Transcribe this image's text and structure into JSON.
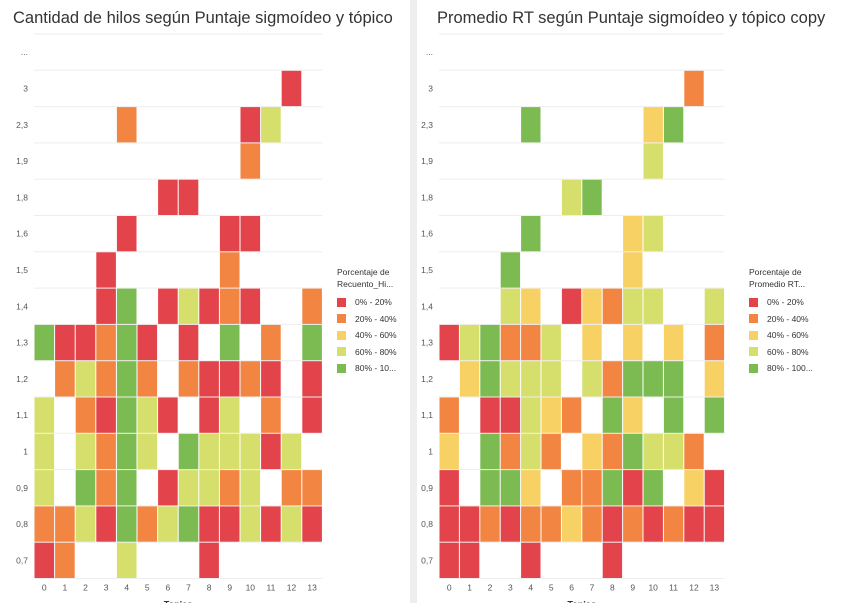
{
  "colors": {
    "0% - 20%": "#e3434a",
    "20% - 40%": "#f28541",
    "40% - 60%": "#f8d165",
    "60% - 80%": "#d6df6b",
    "80% - 100%": "#7cbb52",
    "grid": "#eeeeee",
    "axis_text": "#555555"
  },
  "chart_data": [
    {
      "type": "heatmap",
      "title": "Cantidad de hilos según Puntaje sigmoídeo y tópico",
      "xlabel": "Topico",
      "ylabel": "",
      "x_categories": [
        "0",
        "1",
        "2",
        "3",
        "4",
        "5",
        "6",
        "7",
        "8",
        "9",
        "10",
        "11",
        "12",
        "13"
      ],
      "y_categories": [
        "...",
        "3",
        "2,3",
        "1,9",
        "1,8",
        "1,6",
        "1,5",
        "1,4",
        "1,3",
        "1,2",
        "1,1",
        "1",
        "0,9",
        "0,8",
        "0,7"
      ],
      "legend": {
        "title_lines": [
          "Porcentaje de",
          "Recuento_Hi..."
        ],
        "items": [
          "0% - 20%",
          "20% - 40%",
          "40% - 60%",
          "60% - 80%",
          "80% - 10..."
        ],
        "keys": [
          "0% - 20%",
          "20% - 40%",
          "40% - 60%",
          "60% - 80%",
          "80% - 100%"
        ]
      },
      "cells": [
        [
          "3",
          12,
          "0% - 20%"
        ],
        [
          "2,3",
          4,
          "20% - 40%"
        ],
        [
          "2,3",
          10,
          "0% - 20%"
        ],
        [
          "2,3",
          11,
          "60% - 80%"
        ],
        [
          "1,9",
          10,
          "20% - 40%"
        ],
        [
          "1,8",
          6,
          "0% - 20%"
        ],
        [
          "1,8",
          7,
          "0% - 20%"
        ],
        [
          "1,6",
          4,
          "0% - 20%"
        ],
        [
          "1,6",
          9,
          "0% - 20%"
        ],
        [
          "1,6",
          10,
          "0% - 20%"
        ],
        [
          "1,5",
          3,
          "0% - 20%"
        ],
        [
          "1,5",
          9,
          "20% - 40%"
        ],
        [
          "1,4",
          3,
          "0% - 20%"
        ],
        [
          "1,4",
          4,
          "80% - 100%"
        ],
        [
          "1,4",
          6,
          "0% - 20%"
        ],
        [
          "1,4",
          7,
          "60% - 80%"
        ],
        [
          "1,4",
          8,
          "0% - 20%"
        ],
        [
          "1,4",
          9,
          "20% - 40%"
        ],
        [
          "1,4",
          10,
          "0% - 20%"
        ],
        [
          "1,4",
          13,
          "20% - 40%"
        ],
        [
          "1,3",
          0,
          "80% - 100%"
        ],
        [
          "1,3",
          1,
          "0% - 20%"
        ],
        [
          "1,3",
          2,
          "0% - 20%"
        ],
        [
          "1,3",
          3,
          "20% - 40%"
        ],
        [
          "1,3",
          4,
          "80% - 100%"
        ],
        [
          "1,3",
          5,
          "0% - 20%"
        ],
        [
          "1,3",
          7,
          "0% - 20%"
        ],
        [
          "1,3",
          9,
          "80% - 100%"
        ],
        [
          "1,3",
          11,
          "20% - 40%"
        ],
        [
          "1,3",
          13,
          "80% - 100%"
        ],
        [
          "1,2",
          1,
          "20% - 40%"
        ],
        [
          "1,2",
          2,
          "60% - 80%"
        ],
        [
          "1,2",
          3,
          "20% - 40%"
        ],
        [
          "1,2",
          4,
          "80% - 100%"
        ],
        [
          "1,2",
          5,
          "20% - 40%"
        ],
        [
          "1,2",
          7,
          "20% - 40%"
        ],
        [
          "1,2",
          8,
          "0% - 20%"
        ],
        [
          "1,2",
          9,
          "0% - 20%"
        ],
        [
          "1,2",
          10,
          "20% - 40%"
        ],
        [
          "1,2",
          11,
          "0% - 20%"
        ],
        [
          "1,2",
          13,
          "0% - 20%"
        ],
        [
          "1,1",
          0,
          "60% - 80%"
        ],
        [
          "1,1",
          2,
          "20% - 40%"
        ],
        [
          "1,1",
          3,
          "0% - 20%"
        ],
        [
          "1,1",
          4,
          "80% - 100%"
        ],
        [
          "1,1",
          5,
          "60% - 80%"
        ],
        [
          "1,1",
          6,
          "0% - 20%"
        ],
        [
          "1,1",
          8,
          "0% - 20%"
        ],
        [
          "1,1",
          9,
          "60% - 80%"
        ],
        [
          "1,1",
          11,
          "20% - 40%"
        ],
        [
          "1,1",
          13,
          "0% - 20%"
        ],
        [
          "1",
          0,
          "60% - 80%"
        ],
        [
          "1",
          2,
          "60% - 80%"
        ],
        [
          "1",
          3,
          "20% - 40%"
        ],
        [
          "1",
          4,
          "80% - 100%"
        ],
        [
          "1",
          5,
          "60% - 80%"
        ],
        [
          "1",
          7,
          "80% - 100%"
        ],
        [
          "1",
          8,
          "60% - 80%"
        ],
        [
          "1",
          9,
          "60% - 80%"
        ],
        [
          "1",
          10,
          "60% - 80%"
        ],
        [
          "1",
          11,
          "0% - 20%"
        ],
        [
          "1",
          12,
          "60% - 80%"
        ],
        [
          "0,9",
          0,
          "60% - 80%"
        ],
        [
          "0,9",
          2,
          "80% - 100%"
        ],
        [
          "0,9",
          3,
          "20% - 40%"
        ],
        [
          "0,9",
          4,
          "80% - 100%"
        ],
        [
          "0,9",
          6,
          "0% - 20%"
        ],
        [
          "0,9",
          7,
          "60% - 80%"
        ],
        [
          "0,9",
          8,
          "60% - 80%"
        ],
        [
          "0,9",
          9,
          "20% - 40%"
        ],
        [
          "0,9",
          10,
          "60% - 80%"
        ],
        [
          "0,9",
          12,
          "20% - 40%"
        ],
        [
          "0,9",
          13,
          "20% - 40%"
        ],
        [
          "0,8",
          0,
          "20% - 40%"
        ],
        [
          "0,8",
          1,
          "20% - 40%"
        ],
        [
          "0,8",
          2,
          "60% - 80%"
        ],
        [
          "0,8",
          3,
          "0% - 20%"
        ],
        [
          "0,8",
          4,
          "80% - 100%"
        ],
        [
          "0,8",
          5,
          "20% - 40%"
        ],
        [
          "0,8",
          6,
          "60% - 80%"
        ],
        [
          "0,8",
          7,
          "80% - 100%"
        ],
        [
          "0,8",
          8,
          "0% - 20%"
        ],
        [
          "0,8",
          9,
          "0% - 20%"
        ],
        [
          "0,8",
          10,
          "60% - 80%"
        ],
        [
          "0,8",
          11,
          "0% - 20%"
        ],
        [
          "0,8",
          12,
          "60% - 80%"
        ],
        [
          "0,8",
          13,
          "0% - 20%"
        ],
        [
          "0,7",
          0,
          "0% - 20%"
        ],
        [
          "0,7",
          1,
          "20% - 40%"
        ],
        [
          "0,7",
          4,
          "60% - 80%"
        ],
        [
          "0,7",
          8,
          "0% - 20%"
        ]
      ]
    },
    {
      "type": "heatmap",
      "title": "Promedio RT según Puntaje sigmoídeo y tópico copy",
      "xlabel": "Topico",
      "ylabel": "",
      "x_categories": [
        "0",
        "1",
        "2",
        "3",
        "4",
        "5",
        "6",
        "7",
        "8",
        "9",
        "10",
        "11",
        "12",
        "13"
      ],
      "y_categories": [
        "...",
        "3",
        "2,3",
        "1,9",
        "1,8",
        "1,6",
        "1,5",
        "1,4",
        "1,3",
        "1,2",
        "1,1",
        "1",
        "0,9",
        "0,8",
        "0,7"
      ],
      "legend": {
        "title_lines": [
          "Porcentaje de",
          "Promedio RT..."
        ],
        "items": [
          "0% - 20%",
          "20% - 40%",
          "40% - 60%",
          "60% - 80%",
          "80% - 100..."
        ],
        "keys": [
          "0% - 20%",
          "20% - 40%",
          "40% - 60%",
          "60% - 80%",
          "80% - 100%"
        ]
      },
      "cells": [
        [
          "3",
          12,
          "20% - 40%"
        ],
        [
          "2,3",
          4,
          "80% - 100%"
        ],
        [
          "2,3",
          10,
          "40% - 60%"
        ],
        [
          "2,3",
          11,
          "80% - 100%"
        ],
        [
          "1,9",
          10,
          "60% - 80%"
        ],
        [
          "1,8",
          6,
          "60% - 80%"
        ],
        [
          "1,8",
          7,
          "80% - 100%"
        ],
        [
          "1,6",
          4,
          "80% - 100%"
        ],
        [
          "1,6",
          9,
          "40% - 60%"
        ],
        [
          "1,6",
          10,
          "60% - 80%"
        ],
        [
          "1,5",
          3,
          "80% - 100%"
        ],
        [
          "1,5",
          9,
          "40% - 60%"
        ],
        [
          "1,4",
          3,
          "60% - 80%"
        ],
        [
          "1,4",
          4,
          "40% - 60%"
        ],
        [
          "1,4",
          6,
          "0% - 20%"
        ],
        [
          "1,4",
          7,
          "40% - 60%"
        ],
        [
          "1,4",
          8,
          "20% - 40%"
        ],
        [
          "1,4",
          9,
          "60% - 80%"
        ],
        [
          "1,4",
          10,
          "60% - 80%"
        ],
        [
          "1,4",
          13,
          "60% - 80%"
        ],
        [
          "1,3",
          0,
          "0% - 20%"
        ],
        [
          "1,3",
          1,
          "60% - 80%"
        ],
        [
          "1,3",
          2,
          "80% - 100%"
        ],
        [
          "1,3",
          3,
          "20% - 40%"
        ],
        [
          "1,3",
          4,
          "20% - 40%"
        ],
        [
          "1,3",
          5,
          "60% - 80%"
        ],
        [
          "1,3",
          7,
          "40% - 60%"
        ],
        [
          "1,3",
          9,
          "40% - 60%"
        ],
        [
          "1,3",
          11,
          "40% - 60%"
        ],
        [
          "1,3",
          13,
          "20% - 40%"
        ],
        [
          "1,2",
          1,
          "40% - 60%"
        ],
        [
          "1,2",
          2,
          "80% - 100%"
        ],
        [
          "1,2",
          3,
          "60% - 80%"
        ],
        [
          "1,2",
          4,
          "60% - 80%"
        ],
        [
          "1,2",
          5,
          "60% - 80%"
        ],
        [
          "1,2",
          7,
          "60% - 80%"
        ],
        [
          "1,2",
          8,
          "20% - 40%"
        ],
        [
          "1,2",
          9,
          "80% - 100%"
        ],
        [
          "1,2",
          10,
          "80% - 100%"
        ],
        [
          "1,2",
          11,
          "80% - 100%"
        ],
        [
          "1,2",
          13,
          "40% - 60%"
        ],
        [
          "1,1",
          0,
          "20% - 40%"
        ],
        [
          "1,1",
          2,
          "0% - 20%"
        ],
        [
          "1,1",
          3,
          "0% - 20%"
        ],
        [
          "1,1",
          4,
          "60% - 80%"
        ],
        [
          "1,1",
          5,
          "40% - 60%"
        ],
        [
          "1,1",
          6,
          "20% - 40%"
        ],
        [
          "1,1",
          8,
          "80% - 100%"
        ],
        [
          "1,1",
          9,
          "40% - 60%"
        ],
        [
          "1,1",
          11,
          "80% - 100%"
        ],
        [
          "1,1",
          13,
          "80% - 100%"
        ],
        [
          "1",
          0,
          "40% - 60%"
        ],
        [
          "1",
          2,
          "80% - 100%"
        ],
        [
          "1",
          3,
          "20% - 40%"
        ],
        [
          "1",
          4,
          "60% - 80%"
        ],
        [
          "1",
          5,
          "20% - 40%"
        ],
        [
          "1",
          7,
          "40% - 60%"
        ],
        [
          "1",
          8,
          "20% - 40%"
        ],
        [
          "1",
          9,
          "80% - 100%"
        ],
        [
          "1",
          10,
          "60% - 80%"
        ],
        [
          "1",
          11,
          "60% - 80%"
        ],
        [
          "1",
          12,
          "20% - 40%"
        ],
        [
          "0,9",
          0,
          "0% - 20%"
        ],
        [
          "0,9",
          2,
          "80% - 100%"
        ],
        [
          "0,9",
          3,
          "80% - 100%"
        ],
        [
          "0,9",
          4,
          "40% - 60%"
        ],
        [
          "0,9",
          6,
          "20% - 40%"
        ],
        [
          "0,9",
          7,
          "20% - 40%"
        ],
        [
          "0,9",
          8,
          "80% - 100%"
        ],
        [
          "0,9",
          9,
          "0% - 20%"
        ],
        [
          "0,9",
          10,
          "80% - 100%"
        ],
        [
          "0,9",
          12,
          "40% - 60%"
        ],
        [
          "0,9",
          13,
          "0% - 20%"
        ],
        [
          "0,8",
          0,
          "0% - 20%"
        ],
        [
          "0,8",
          1,
          "0% - 20%"
        ],
        [
          "0,8",
          2,
          "20% - 40%"
        ],
        [
          "0,8",
          3,
          "0% - 20%"
        ],
        [
          "0,8",
          4,
          "20% - 40%"
        ],
        [
          "0,8",
          5,
          "20% - 40%"
        ],
        [
          "0,8",
          6,
          "40% - 60%"
        ],
        [
          "0,8",
          7,
          "20% - 40%"
        ],
        [
          "0,8",
          8,
          "0% - 20%"
        ],
        [
          "0,8",
          9,
          "20% - 40%"
        ],
        [
          "0,8",
          10,
          "0% - 20%"
        ],
        [
          "0,8",
          11,
          "20% - 40%"
        ],
        [
          "0,8",
          12,
          "0% - 20%"
        ],
        [
          "0,8",
          13,
          "0% - 20%"
        ],
        [
          "0,7",
          0,
          "0% - 20%"
        ],
        [
          "0,7",
          1,
          "0% - 20%"
        ],
        [
          "0,7",
          4,
          "0% - 20%"
        ],
        [
          "0,7",
          8,
          "0% - 20%"
        ]
      ]
    }
  ]
}
